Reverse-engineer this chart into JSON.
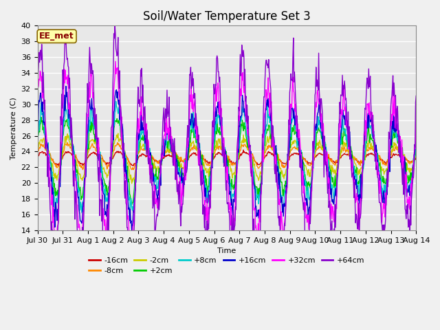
{
  "title": "Soil/Water Temperature Set 3",
  "xlabel": "Time",
  "ylabel": "Temperature (C)",
  "ylim": [
    14,
    40
  ],
  "yticks": [
    14,
    16,
    18,
    20,
    22,
    24,
    26,
    28,
    30,
    32,
    34,
    36,
    38,
    40
  ],
  "x_labels": [
    "Jul 30",
    "Jul 31",
    "Aug 1",
    "Aug 2",
    "Aug 3",
    "Aug 4",
    "Aug 5",
    "Aug 6",
    "Aug 7",
    "Aug 8",
    "Aug 9",
    "Aug 10",
    "Aug 11",
    "Aug 12",
    "Aug 13",
    "Aug 14"
  ],
  "series_colors": {
    "-16cm": "#cc0000",
    "-8cm": "#ff8800",
    "-2cm": "#cccc00",
    "+2cm": "#00cc00",
    "+8cm": "#00cccc",
    "+16cm": "#0000cc",
    "+32cm": "#ff00ff",
    "+64cm": "#8800cc"
  },
  "annotation_text": "EE_met",
  "annotation_bg": "#ffffaa",
  "annotation_border": "#886600",
  "annotation_textcolor": "#880000",
  "bg_color": "#e8e8e8",
  "plot_bg": "#e8e8e8",
  "title_fontsize": 12,
  "axis_fontsize": 8,
  "legend_fontsize": 8
}
